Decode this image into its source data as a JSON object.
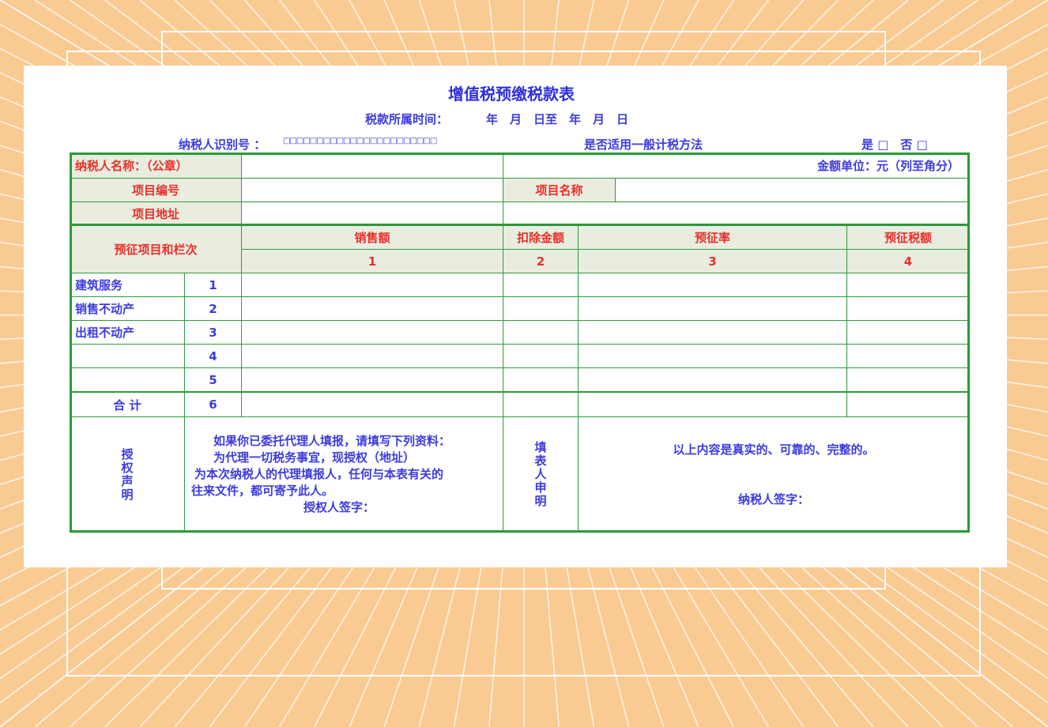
{
  "title": "增值税预缴税款表",
  "period": {
    "label": "税款所属时间：",
    "value": "年　月　日至　年　月　日"
  },
  "taxpayer_id": {
    "label": "纳税人识别号 ：",
    "boxes": "□□□□□□□□□□□□□□□□□□□□□□□"
  },
  "general_method": {
    "label": "是否适用一般计税方法",
    "options": "是 □　否 □"
  },
  "header": {
    "name_label": "纳税人名称：（公章）",
    "unit": "金额单位：元（列至角分）",
    "project_no": "项目编号",
    "project_name": "项目名称",
    "project_addr": "项目地址"
  },
  "columns": {
    "item": "预征项目和栏次",
    "sales": "销售额",
    "deduct": "扣除金额",
    "rate": "预征率",
    "tax": "预征税额",
    "nums": [
      "1",
      "2",
      "3",
      "4"
    ]
  },
  "rows": [
    {
      "label": "建筑服务",
      "no": "1"
    },
    {
      "label": "销售不动产",
      "no": "2"
    },
    {
      "label": "出租不动产",
      "no": "3"
    },
    {
      "label": "",
      "no": "4"
    },
    {
      "label": "",
      "no": "5"
    },
    {
      "label": "合 计",
      "no": "6"
    }
  ],
  "authorization": {
    "label": "授权声明",
    "lines": [
      "如果你已委托代理人填报，请填写下列资料：",
      "为代理一切税务事宜，现授权（地址）",
      "为本次纳税人的代理填报人，任何与本表有关的",
      "往来文件，都可寄予此人。",
      "授权人签字："
    ]
  },
  "declaration": {
    "label": "填表人申明",
    "text": "以上内容是真实的、可靠的、完整的。",
    "sign": "纳税人签字："
  },
  "colors": {
    "background": "#f9cb93",
    "border": "#2a9a37",
    "label_text": "#e8302a",
    "text": "#3b3be0",
    "label_bg": "#e9ede0"
  }
}
